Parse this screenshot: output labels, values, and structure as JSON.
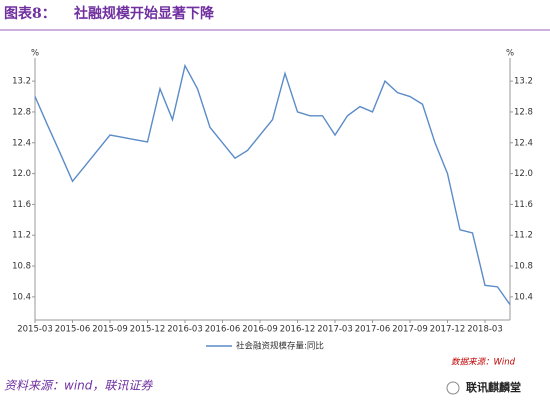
{
  "chart_data": {
    "type": "line",
    "title_label": "图表8：",
    "title": "社融规模开始显著下降",
    "y_unit": "%",
    "y2_unit": "%",
    "categories": [
      "2015-03",
      null,
      null,
      "2015-06",
      null,
      null,
      "2015-09",
      null,
      null,
      "2015-12",
      null,
      null,
      "2016-03",
      null,
      null,
      "2016-06",
      null,
      null,
      "2016-09",
      null,
      null,
      "2016-12",
      null,
      null,
      "2017-03",
      null,
      null,
      "2017-06",
      null,
      null,
      "2017-09",
      null,
      null,
      "2017-12",
      null,
      null,
      "2018-03",
      null,
      null
    ],
    "series": [
      {
        "name": "社会融资规模存量:同比",
        "color": "#5b8cc8",
        "values": [
          13.0,
          12.63,
          12.27,
          11.9,
          12.1,
          12.3,
          12.5,
          12.47,
          12.44,
          12.41,
          13.1,
          12.7,
          13.4,
          13.1,
          12.6,
          12.4,
          12.2,
          12.3,
          12.5,
          12.7,
          13.3,
          12.8,
          12.75,
          12.75,
          12.5,
          12.75,
          12.87,
          12.8,
          13.2,
          13.05,
          13.0,
          12.9,
          12.4,
          12.0,
          11.27,
          11.23,
          10.55,
          10.53,
          10.3
        ]
      }
    ],
    "ylim": [
      10.1,
      13.5
    ],
    "yticks": [
      {
        "value": 10.4,
        "label": "10.4"
      },
      {
        "value": 10.8,
        "label": "10.8"
      },
      {
        "value": 11.2,
        "label": "11.2"
      },
      {
        "value": 11.6,
        "label": "11.6"
      },
      {
        "value": 12,
        "label": "12.0"
      },
      {
        "value": 12.4,
        "label": "12.4"
      },
      {
        "value": 12.8,
        "label": "12.8"
      },
      {
        "value": 13.2,
        "label": "13.2"
      }
    ],
    "y2lim": [
      10.1,
      13.5
    ],
    "y2ticks": [
      {
        "value": 10.4,
        "label": "10.4"
      },
      {
        "value": 10.8,
        "label": "10.8"
      },
      {
        "value": 11.2,
        "label": "11.2"
      },
      {
        "value": 11.6,
        "label": "11.6"
      },
      {
        "value": 12,
        "label": "12.0"
      },
      {
        "value": 12.4,
        "label": "12.4"
      },
      {
        "value": 12.8,
        "label": "12.8"
      },
      {
        "value": 13.2,
        "label": "13.2"
      }
    ],
    "grid": false,
    "source": "数据来源：Wind",
    "footnote": "资料来源：wind，联讯证券",
    "watermark": "联讯麒麟堂"
  }
}
